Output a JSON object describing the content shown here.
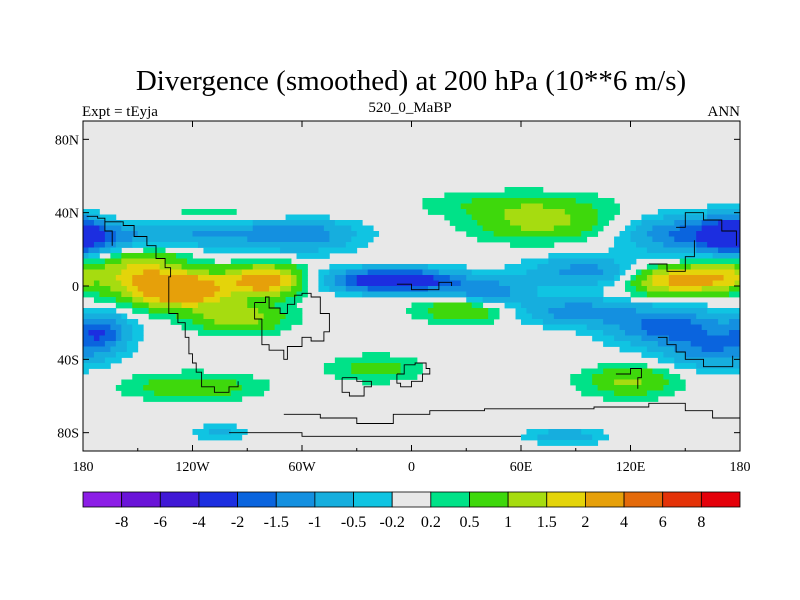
{
  "chart_data": {
    "type": "heatmap",
    "title": "Divergence (smoothed) at 200 hPa (10**6 m/s)",
    "subtitle_left": "Expt = tEyja",
    "subtitle_center": "520_0_MaBP",
    "subtitle_right": "ANN",
    "projection": "cylindrical equidistant",
    "x_range": [
      -180,
      180
    ],
    "y_range": [
      -90,
      90
    ],
    "x_ticks": [
      {
        "value": -180,
        "label": "180"
      },
      {
        "value": -120,
        "label": "120W"
      },
      {
        "value": -60,
        "label": "60W"
      },
      {
        "value": 0,
        "label": "0"
      },
      {
        "value": 60,
        "label": "60E"
      },
      {
        "value": 120,
        "label": "120E"
      },
      {
        "value": 180,
        "label": "180"
      }
    ],
    "y_ticks": [
      {
        "value": 80,
        "label": "80N"
      },
      {
        "value": 40,
        "label": "40N"
      },
      {
        "value": 0,
        "label": "0"
      },
      {
        "value": -40,
        "label": "40S"
      },
      {
        "value": -80,
        "label": "80S"
      }
    ],
    "levels": [
      "-8",
      "-6",
      "-4",
      "-2",
      "-1.5",
      "-1",
      "-0.5",
      "-0.2",
      "0.2",
      "0.5",
      "1",
      "1.5",
      "2",
      "4",
      "6",
      "8"
    ],
    "colors": [
      "#8c1ee6",
      "#6a14d8",
      "#4018d6",
      "#1c2ee0",
      "#0a64de",
      "#1490e0",
      "#16aede",
      "#10c4e2",
      "#e8e8e8",
      "#00e288",
      "#3ed80c",
      "#a6dc10",
      "#e4d40a",
      "#e6a00a",
      "#e46a0a",
      "#e43208",
      "#e4000a"
    ],
    "grid": false,
    "legend": "bottom horizontal colorbar",
    "field_blobs": [
      {
        "lon": -165,
        "lat": 25,
        "rlon": 22,
        "rlat": 9,
        "value": -1.2
      },
      {
        "lon": -115,
        "lat": 30,
        "rlon": 40,
        "rlat": 9,
        "value": -1.1
      },
      {
        "lon": -60,
        "lat": 28,
        "rlon": 30,
        "rlat": 9,
        "value": -1.3
      },
      {
        "lon": -110,
        "lat": 38,
        "rlon": 55,
        "rlat": 6,
        "value": 0.6
      },
      {
        "lon": 55,
        "lat": 45,
        "rlon": 50,
        "rlat": 7,
        "value": 0.5
      },
      {
        "lon": 70,
        "lat": 35,
        "rlon": 35,
        "rlat": 10,
        "value": 1.2
      },
      {
        "lon": 150,
        "lat": 28,
        "rlon": 30,
        "rlat": 10,
        "value": -1.6
      },
      {
        "lon": 175,
        "lat": 28,
        "rlon": 15,
        "rlat": 10,
        "value": -2.4
      },
      {
        "lon": -150,
        "lat": 8,
        "rlon": 25,
        "rlat": 14,
        "value": 1.6
      },
      {
        "lon": -125,
        "lat": -2,
        "rlon": 25,
        "rlat": 9,
        "value": 3.0
      },
      {
        "lon": -80,
        "lat": 3,
        "rlon": 20,
        "rlat": 8,
        "value": 2.6
      },
      {
        "lon": -10,
        "lat": 3,
        "rlon": 32,
        "rlat": 6,
        "value": -3.2
      },
      {
        "lon": 40,
        "lat": -4,
        "rlon": 25,
        "rlat": 8,
        "value": -1.5
      },
      {
        "lon": 95,
        "lat": 8,
        "rlon": 30,
        "rlat": 8,
        "value": -1.2
      },
      {
        "lon": 145,
        "lat": 3,
        "rlon": 25,
        "rlat": 8,
        "value": 2.2
      },
      {
        "lon": 170,
        "lat": 6,
        "rlon": 15,
        "rlat": 8,
        "value": 1.3
      },
      {
        "lon": -95,
        "lat": -17,
        "rlon": 25,
        "rlat": 8,
        "value": 1.4
      },
      {
        "lon": 30,
        "lat": -12,
        "rlon": 25,
        "rlat": 7,
        "value": 1.3
      },
      {
        "lon": 90,
        "lat": -14,
        "rlon": 30,
        "rlat": 7,
        "value": -1.3
      },
      {
        "lon": 140,
        "lat": -22,
        "rlon": 30,
        "rlat": 10,
        "value": -1.8
      },
      {
        "lon": 165,
        "lat": -35,
        "rlon": 25,
        "rlat": 10,
        "value": -1.3
      },
      {
        "lon": -170,
        "lat": -25,
        "rlon": 15,
        "rlat": 10,
        "value": -1.8
      },
      {
        "lon": -120,
        "lat": -55,
        "rlon": 35,
        "rlat": 7,
        "value": 0.9
      },
      {
        "lon": -20,
        "lat": -45,
        "rlon": 25,
        "rlat": 7,
        "value": 0.7
      },
      {
        "lon": 120,
        "lat": -52,
        "rlon": 25,
        "rlat": 8,
        "value": 1.1
      },
      {
        "lon": 85,
        "lat": -82,
        "rlon": 20,
        "rlat": 4,
        "value": -0.9
      },
      {
        "lon": -105,
        "lat": -80,
        "rlon": 15,
        "rlat": 4,
        "value": -0.6
      }
    ]
  }
}
